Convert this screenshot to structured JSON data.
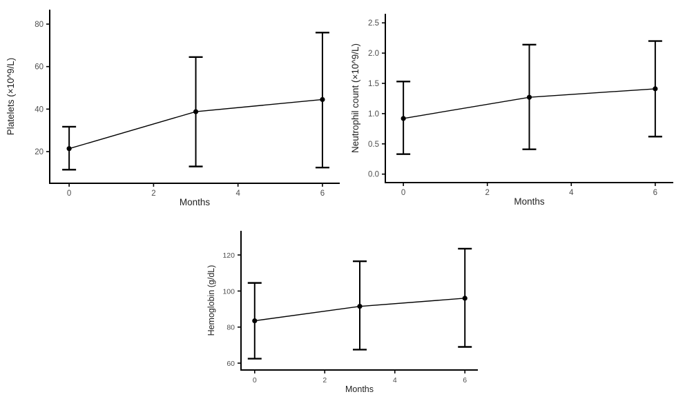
{
  "figure": {
    "background_color": "#ffffff",
    "series_color": "#000000",
    "tick_label_color": "#4d4d4d",
    "axis_title_color": "#1f1f1f"
  },
  "chart_data": [
    {
      "id": "platelets",
      "type": "line",
      "title": "",
      "xlabel": "Months",
      "ylabel": "Platelets (×10^9/L)",
      "x": [
        0,
        3,
        6
      ],
      "values": [
        21.4,
        38.8,
        44.5
      ],
      "error_low": [
        11.5,
        13.0,
        12.5
      ],
      "error_high": [
        31.7,
        64.5,
        76.0
      ],
      "xticks": [
        0,
        2,
        4,
        6
      ],
      "xticklabels": [
        "0",
        "2",
        "4",
        "6"
      ],
      "yticks": [
        20,
        40,
        60,
        80
      ],
      "yticklabels": [
        "20",
        "40",
        "60",
        "80"
      ],
      "xlim": [
        -0.46,
        6.41
      ],
      "ylim": [
        5.1,
        86.8
      ],
      "grid": false,
      "legend": "none",
      "marker": "circle",
      "error_bars": true
    },
    {
      "id": "neutrophils",
      "type": "line",
      "title": "",
      "xlabel": "Months",
      "ylabel": "Neutrophil count (×10^9/L)",
      "x": [
        0,
        3,
        6
      ],
      "values": [
        0.92,
        1.27,
        1.41
      ],
      "error_low": [
        0.33,
        0.41,
        0.62
      ],
      "error_high": [
        1.53,
        2.14,
        2.2
      ],
      "xticks": [
        0,
        2,
        4,
        6
      ],
      "xticklabels": [
        "0",
        "2",
        "4",
        "6"
      ],
      "yticks": [
        0.0,
        0.5,
        1.0,
        1.5,
        2.0,
        2.5
      ],
      "yticklabels": [
        "0.0",
        "0.5",
        "1.0",
        "1.5",
        "2.0",
        "2.5"
      ],
      "xlim": [
        -0.43,
        6.43
      ],
      "ylim": [
        -0.14,
        2.65
      ],
      "grid": false,
      "legend": "none",
      "marker": "circle",
      "error_bars": true
    },
    {
      "id": "hemoglobin",
      "type": "line",
      "title": "",
      "xlabel": "Months",
      "ylabel": "Hemoglobin (g/dL)",
      "x": [
        0,
        3,
        6
      ],
      "values": [
        83.5,
        91.5,
        96.0
      ],
      "error_low": [
        62.5,
        67.5,
        69.0
      ],
      "error_high": [
        104.5,
        116.5,
        123.5
      ],
      "xticks": [
        0,
        2,
        4,
        6
      ],
      "xticklabels": [
        "0",
        "2",
        "4",
        "6"
      ],
      "yticks": [
        60,
        80,
        100,
        120
      ],
      "yticklabels": [
        "60",
        "80",
        "100",
        "120"
      ],
      "xlim": [
        -0.39,
        6.37
      ],
      "ylim": [
        56.2,
        133.4
      ],
      "grid": false,
      "legend": "none",
      "marker": "circle",
      "error_bars": true
    }
  ]
}
